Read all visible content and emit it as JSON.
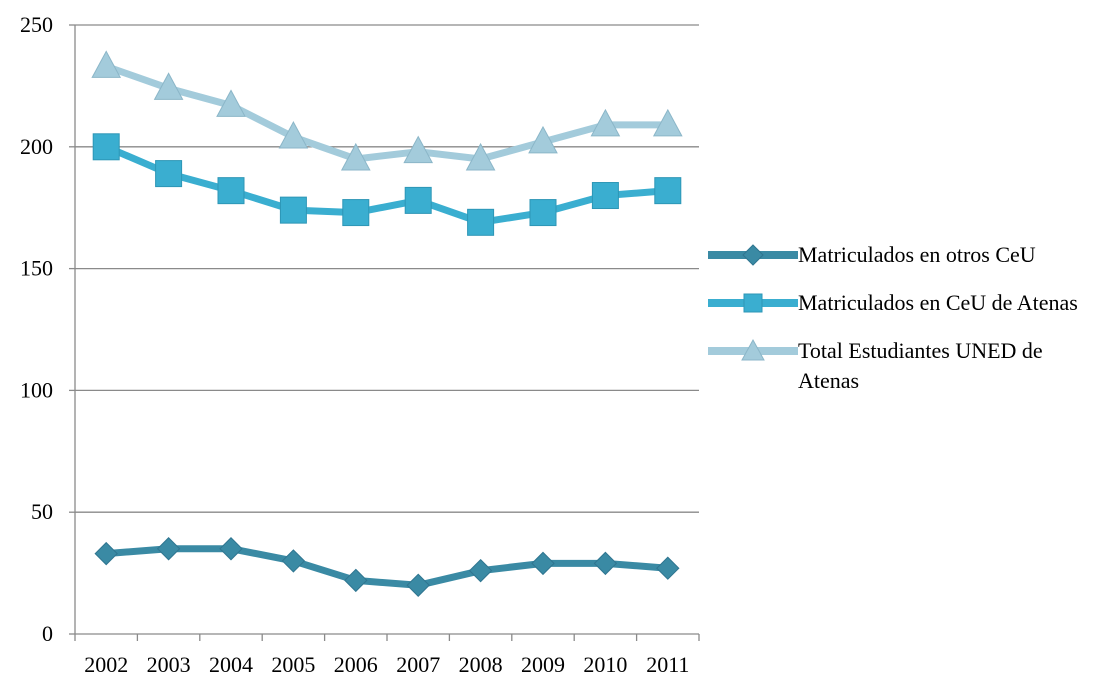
{
  "chart_data": {
    "type": "line",
    "title": "",
    "xlabel": "",
    "ylabel": "",
    "categories": [
      "2002",
      "2003",
      "2004",
      "2005",
      "2006",
      "2007",
      "2008",
      "2009",
      "2010",
      "2011"
    ],
    "ylim": [
      0,
      250
    ],
    "yticks": [
      0,
      50,
      100,
      150,
      200,
      250
    ],
    "grid": true,
    "legend_position": "right",
    "series": [
      {
        "name": "Matriculados en otros CeU",
        "marker": "diamond",
        "color": "#3a8aa4",
        "values": [
          33,
          35,
          35,
          30,
          22,
          20,
          26,
          29,
          29,
          27
        ]
      },
      {
        "name": "Matriculados en CeU de Atenas",
        "marker": "square",
        "color": "#3aaed0",
        "values": [
          200,
          189,
          182,
          174,
          173,
          178,
          169,
          173,
          180,
          182
        ]
      },
      {
        "name": "Total Estudiantes UNED de Atenas",
        "marker": "triangle",
        "color": "#a3cbdb",
        "values": [
          233,
          224,
          217,
          204,
          195,
          198,
          195,
          202,
          209,
          209
        ]
      }
    ]
  }
}
